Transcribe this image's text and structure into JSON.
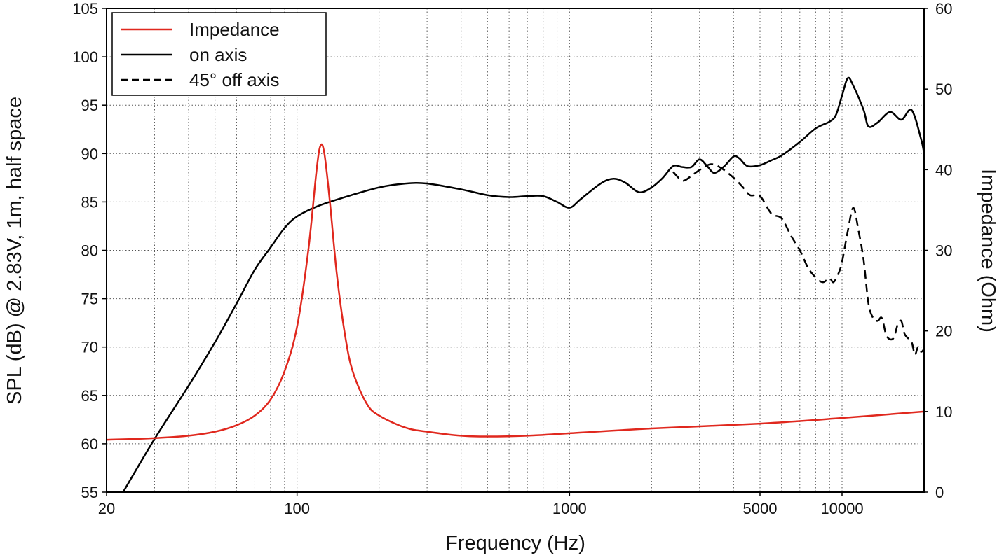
{
  "chart_data": {
    "type": "line",
    "title": "",
    "xlabel": "Frequency (Hz)",
    "ylabel": "SPL (dB) @ 2.83V, 1m, half space",
    "y2label": "Impedance (Ohm)",
    "xscale": "log",
    "xlim": [
      20,
      20000
    ],
    "ylim": [
      55,
      105
    ],
    "y2lim": [
      0,
      60
    ],
    "grid": true,
    "legend_position": "top-left",
    "x_ticks": [
      20,
      100,
      1000,
      5000,
      10000
    ],
    "x_tick_labels": [
      "20",
      "100",
      "1000",
      "5000",
      "10000"
    ],
    "y_ticks": [
      55,
      60,
      65,
      70,
      75,
      80,
      85,
      90,
      95,
      100,
      105
    ],
    "y2_ticks": [
      0,
      10,
      20,
      30,
      40,
      50,
      60
    ],
    "series": [
      {
        "name": "Impedance",
        "axis": "right",
        "color": "#e0281e",
        "dash": "solid",
        "points": [
          [
            20,
            6.5
          ],
          [
            30,
            6.7
          ],
          [
            40,
            7.0
          ],
          [
            50,
            7.5
          ],
          [
            60,
            8.3
          ],
          [
            70,
            9.5
          ],
          [
            80,
            11.5
          ],
          [
            90,
            15.0
          ],
          [
            100,
            20.5
          ],
          [
            110,
            30.0
          ],
          [
            118,
            40.0
          ],
          [
            122,
            43.0
          ],
          [
            126,
            42.0
          ],
          [
            132,
            36.0
          ],
          [
            140,
            27.0
          ],
          [
            150,
            19.5
          ],
          [
            160,
            15.0
          ],
          [
            180,
            11.0
          ],
          [
            200,
            9.5
          ],
          [
            250,
            8.0
          ],
          [
            300,
            7.5
          ],
          [
            400,
            7.0
          ],
          [
            500,
            6.9
          ],
          [
            700,
            7.0
          ],
          [
            1000,
            7.3
          ],
          [
            2000,
            7.9
          ],
          [
            5000,
            8.5
          ],
          [
            10000,
            9.2
          ],
          [
            20000,
            10.0
          ]
        ]
      },
      {
        "name": "on axis",
        "axis": "left",
        "color": "#000000",
        "dash": "solid",
        "points": [
          [
            23,
            55.0
          ],
          [
            30,
            60.5
          ],
          [
            40,
            66.0
          ],
          [
            50,
            70.5
          ],
          [
            60,
            74.5
          ],
          [
            70,
            78.0
          ],
          [
            80,
            80.3
          ],
          [
            90,
            82.3
          ],
          [
            100,
            83.5
          ],
          [
            120,
            84.6
          ],
          [
            150,
            85.5
          ],
          [
            200,
            86.5
          ],
          [
            250,
            86.9
          ],
          [
            300,
            86.9
          ],
          [
            400,
            86.3
          ],
          [
            500,
            85.7
          ],
          [
            600,
            85.5
          ],
          [
            700,
            85.6
          ],
          [
            800,
            85.6
          ],
          [
            900,
            85.0
          ],
          [
            1000,
            84.4
          ],
          [
            1100,
            85.3
          ],
          [
            1300,
            86.9
          ],
          [
            1450,
            87.4
          ],
          [
            1600,
            87.0
          ],
          [
            1800,
            86.0
          ],
          [
            2000,
            86.5
          ],
          [
            2200,
            87.5
          ],
          [
            2400,
            88.7
          ],
          [
            2600,
            88.6
          ],
          [
            2800,
            88.6
          ],
          [
            3000,
            89.4
          ],
          [
            3200,
            88.7
          ],
          [
            3400,
            88.0
          ],
          [
            3700,
            88.7
          ],
          [
            4000,
            89.7
          ],
          [
            4200,
            89.5
          ],
          [
            4500,
            88.7
          ],
          [
            5000,
            88.8
          ],
          [
            5500,
            89.3
          ],
          [
            6000,
            89.8
          ],
          [
            7000,
            91.2
          ],
          [
            8000,
            92.6
          ],
          [
            9000,
            93.3
          ],
          [
            9500,
            94.0
          ],
          [
            10000,
            96.0
          ],
          [
            10500,
            97.8
          ],
          [
            11000,
            97.0
          ],
          [
            12000,
            94.5
          ],
          [
            12500,
            92.8
          ],
          [
            13500,
            93.2
          ],
          [
            15000,
            94.3
          ],
          [
            16500,
            93.5
          ],
          [
            18000,
            94.5
          ],
          [
            19500,
            91.5
          ],
          [
            20000,
            90.0
          ]
        ]
      },
      {
        "name": "45° off axis",
        "axis": "left",
        "color": "#000000",
        "dash": "dashed",
        "points": [
          [
            2400,
            88.1
          ],
          [
            2600,
            87.2
          ],
          [
            2800,
            87.7
          ],
          [
            3000,
            88.3
          ],
          [
            3300,
            88.9
          ],
          [
            3600,
            88.5
          ],
          [
            4000,
            87.5
          ],
          [
            4300,
            86.6
          ],
          [
            4600,
            85.7
          ],
          [
            5000,
            85.6
          ],
          [
            5500,
            83.8
          ],
          [
            6000,
            83.3
          ],
          [
            6500,
            81.5
          ],
          [
            7000,
            80.0
          ],
          [
            7500,
            78.2
          ],
          [
            8000,
            77.2
          ],
          [
            8500,
            76.7
          ],
          [
            9000,
            77.1
          ],
          [
            9300,
            76.7
          ],
          [
            9700,
            77.6
          ],
          [
            10000,
            78.8
          ],
          [
            10500,
            82.0
          ],
          [
            11000,
            84.4
          ],
          [
            11500,
            82.0
          ],
          [
            12000,
            79.0
          ],
          [
            12500,
            74.5
          ],
          [
            13000,
            73.0
          ],
          [
            13500,
            72.7
          ],
          [
            14000,
            73.0
          ],
          [
            14500,
            71.3
          ],
          [
            15000,
            70.8
          ],
          [
            15500,
            71.0
          ],
          [
            16000,
            72.3
          ],
          [
            16500,
            72.7
          ],
          [
            17000,
            71.3
          ],
          [
            18000,
            70.5
          ],
          [
            18500,
            69.2
          ],
          [
            19000,
            70.0
          ],
          [
            19500,
            69.5
          ],
          [
            20000,
            69.8
          ]
        ]
      }
    ]
  }
}
